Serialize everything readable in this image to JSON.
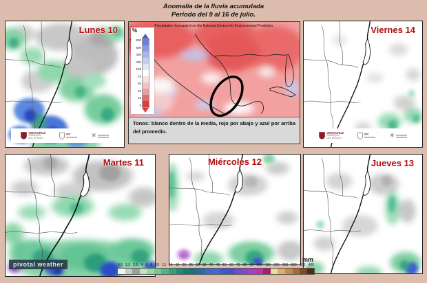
{
  "page": {
    "title_line1": "Anomalía de la lluvia acumulada",
    "title_line2": "Periodo del  9 al 16 de julio."
  },
  "day_panels": {
    "lunes": "Lunes 10",
    "martes": "Martes 11",
    "miercoles": "Miércoles 12",
    "jueves": "Jueves 13",
    "viernes": "Viernes 14"
  },
  "anomaly_panel": {
    "header_note": "Precipitation forecasts from the National Centers for Environmental Prediction.",
    "scale_unit_label": "%",
    "scale_ticks": [
      "800",
      "600",
      "400",
      "300",
      "150",
      "75",
      "50",
      "25",
      "10",
      "5"
    ],
    "scale_colors": [
      "#6e7eda",
      "#8d9ae2",
      "#aab4ea",
      "#c6cdf1",
      "#e0e4f8",
      "#ffffff",
      "#f8e0e0",
      "#f2c4c4",
      "#eaa0a0",
      "#e07070",
      "#d84040"
    ],
    "caption": "Tonos: blanco dentro de la media, rojo por abajo y azul por arriba del promedio."
  },
  "watermark": {
    "text": "pivotal weather"
  },
  "logos": {
    "l1_title": "VERACRUZ",
    "l1_sub1": "GOBIERNO",
    "l1_sub2": "DEL ESTADO",
    "l2_title": "PC"
  },
  "colorbar": {
    "unit": "mm",
    "tick_labels": [
      "0.5",
      "1.5",
      "2.5",
      "4",
      "6",
      "8",
      "10",
      "13",
      "16",
      "19",
      "22",
      "25",
      "30",
      "35",
      "40",
      "45",
      "50",
      "60",
      "70",
      "80",
      "90",
      "100",
      "150",
      "200",
      "250",
      "300",
      "350",
      "400"
    ],
    "cell_colors": [
      "#f2f2f2",
      "#c9c9c9",
      "#9e9e9e",
      "#bfe6c3",
      "#99d8a6",
      "#72c893",
      "#4eb585",
      "#35a17c",
      "#228c77",
      "#187a79",
      "#1c6f87",
      "#2a6da4",
      "#3a6cc2",
      "#4468d8",
      "#3f58d0",
      "#4a4ec8",
      "#6c4ecd",
      "#8c46c8",
      "#ae3cc0",
      "#c133a4",
      "#a32070",
      "#ecd9a6",
      "#deb064",
      "#c98a4e",
      "#aa6a36",
      "#7f4b22",
      "#4e2c12"
    ]
  },
  "theme": {
    "page_bg": "#dcbcac",
    "day_label_color": "#b00d0d",
    "caption_bg": "#d9d9d9",
    "watermark_bg": "rgba(42,56,66,0.88)",
    "watermark_fg": "#c9ecf7"
  }
}
